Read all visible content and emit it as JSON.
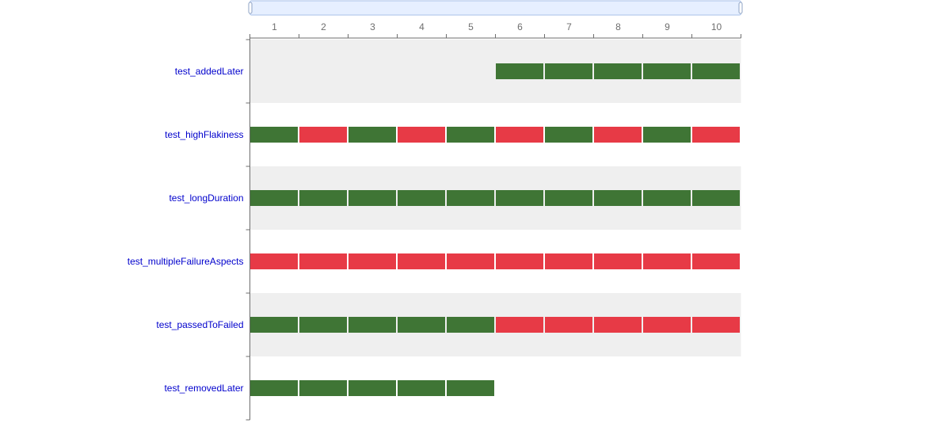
{
  "chart_data": {
    "type": "heatmap",
    "title": "",
    "xlabel": "",
    "ylabel": "",
    "x": [
      "1",
      "2",
      "3",
      "4",
      "5",
      "6",
      "7",
      "8",
      "9",
      "10"
    ],
    "rows": [
      {
        "label": "test_addedLater",
        "status": [
          null,
          null,
          null,
          null,
          null,
          "passed",
          "passed",
          "passed",
          "passed",
          "passed"
        ]
      },
      {
        "label": "test_highFlakiness",
        "status": [
          "passed",
          "failed",
          "passed",
          "failed",
          "passed",
          "failed",
          "passed",
          "failed",
          "passed",
          "failed"
        ]
      },
      {
        "label": "test_longDuration",
        "status": [
          "passed",
          "passed",
          "passed",
          "passed",
          "passed",
          "passed",
          "passed",
          "passed",
          "passed",
          "passed"
        ]
      },
      {
        "label": "test_multipleFailureAspects",
        "status": [
          "failed",
          "failed",
          "failed",
          "failed",
          "failed",
          "failed",
          "failed",
          "failed",
          "failed",
          "failed"
        ]
      },
      {
        "label": "test_passedToFailed",
        "status": [
          "passed",
          "passed",
          "passed",
          "passed",
          "passed",
          "failed",
          "failed",
          "failed",
          "failed",
          "failed"
        ]
      },
      {
        "label": "test_removedLater",
        "status": [
          "passed",
          "passed",
          "passed",
          "passed",
          "passed",
          null,
          null,
          null,
          null,
          null
        ]
      }
    ],
    "colors": {
      "passed": "#3f7535",
      "failed": "#e73a46",
      "row_band": "#efefef",
      "row_label": "#0000cc",
      "axis": "#6e6e6e",
      "slider_fill": "#e6efff",
      "slider_border": "#a8c0e8"
    },
    "grid": false,
    "legend": "none",
    "data_zoom": {
      "start_percent": 0,
      "end_percent": 100
    }
  }
}
